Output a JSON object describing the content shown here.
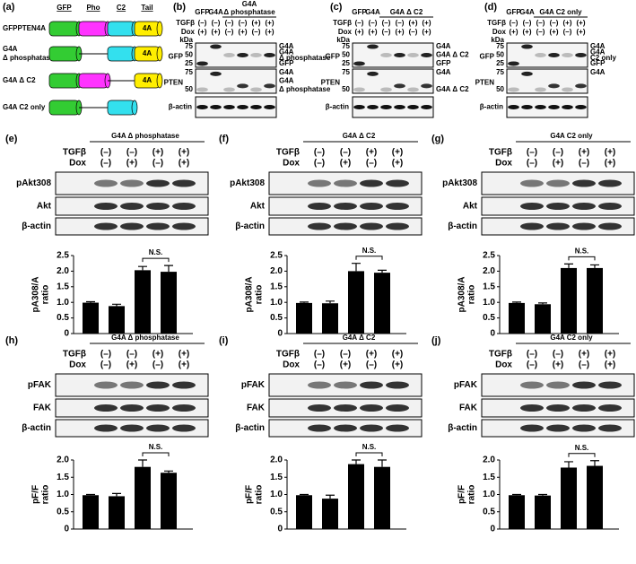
{
  "panel_a": {
    "label": "(a)",
    "domains": [
      "GFP",
      "Pho",
      "C2",
      "Tail"
    ],
    "tail": "4A",
    "constructs": [
      [
        "GFPPTEN4A"
      ],
      [
        "G4A",
        "Δ phosphatase"
      ],
      [
        "G4A Δ C2"
      ],
      [
        "G4A C2 only"
      ]
    ]
  },
  "blot_panels": [
    {
      "label": "(b)",
      "header": [
        "GFP",
        "G4A",
        "G4A",
        "Δ phosphatase"
      ],
      "rows": [
        {
          "name": "TGFβ",
          "values": [
            "(–)",
            "(–)",
            "(–)",
            "(–)",
            "(+)",
            "(+)"
          ]
        },
        {
          "name": "Dox",
          "values": [
            "(+)",
            "(+)",
            "(–)",
            "(+)",
            "(–)",
            "(+)"
          ]
        }
      ],
      "kda": "kDa",
      "blots": [
        {
          "name": "GFP",
          "markers": [
            75,
            50,
            25
          ],
          "right": [
            "G4A",
            "G4A",
            "Δ phosphatase",
            "GFP"
          ]
        },
        {
          "name": "PTEN",
          "markers": [
            75,
            50
          ],
          "right": [
            "G4A",
            "G4A",
            "Δ phosphatase"
          ]
        },
        {
          "name": "β-actin"
        }
      ]
    },
    {
      "label": "(c)",
      "header": [
        "GFP",
        "G4A",
        "G4A Δ C2"
      ],
      "rows": [
        {
          "name": "TGFβ",
          "values": [
            "(–)",
            "(–)",
            "(–)",
            "(–)",
            "(+)",
            "(+)"
          ]
        },
        {
          "name": "Dox",
          "values": [
            "(+)",
            "(+)",
            "(–)",
            "(+)",
            "(–)",
            "(+)"
          ]
        }
      ],
      "kda": "kDa",
      "blots": [
        {
          "name": "GFP",
          "markers": [
            75,
            50,
            25
          ],
          "right": [
            "G4A",
            "G4A Δ C2",
            "GFP"
          ]
        },
        {
          "name": "PTEN",
          "markers": [
            75,
            50
          ],
          "right": [
            "G4A",
            "G4A Δ C2"
          ]
        },
        {
          "name": "β-actin"
        }
      ]
    },
    {
      "label": "(d)",
      "header": [
        "GFP",
        "G4A",
        "G4A C2 only"
      ],
      "rows": [
        {
          "name": "TGFβ",
          "values": [
            "(–)",
            "(–)",
            "(–)",
            "(–)",
            "(+)",
            "(+)"
          ]
        },
        {
          "name": "Dox",
          "values": [
            "(+)",
            "(+)",
            "(–)",
            "(+)",
            "(–)",
            "(+)"
          ]
        }
      ],
      "kda": "kDa",
      "blots": [
        {
          "name": "GFP",
          "markers": [
            75,
            50,
            25
          ],
          "right": [
            "G4A",
            "G4A",
            "C2 only",
            "GFP"
          ]
        },
        {
          "name": "PTEN",
          "markers": [
            75,
            50
          ],
          "right": [
            "G4A"
          ]
        },
        {
          "name": "β-actin"
        }
      ]
    }
  ],
  "chart_data": [
    {
      "type": "bar",
      "label": "(e)",
      "title": "G4A Δ phosphatase",
      "rows": [
        {
          "name": "TGFβ",
          "values": [
            "(–)",
            "(–)",
            "(+)",
            "(+)"
          ]
        },
        {
          "name": "Dox",
          "values": [
            "(–)",
            "(+)",
            "(–)",
            "(+)"
          ]
        }
      ],
      "blots": [
        "pAkt308",
        "Akt",
        "β-actin"
      ],
      "ylabel": [
        "pA308/A",
        "ratio"
      ],
      "values": [
        0.99,
        0.88,
        2.03,
        1.98
      ],
      "errors": [
        0.03,
        0.06,
        0.12,
        0.2
      ],
      "color": "#000000",
      "ylim": [
        0,
        2.5
      ],
      "yticks": [
        0,
        0.5,
        {
          "value": 1,
          "label": "1.0"
        },
        1.5,
        {
          "value": 2,
          "label": "2.0"
        },
        2.5
      ],
      "annotation": "N.S."
    },
    {
      "type": "bar",
      "label": "(f)",
      "title": "G4A Δ C2",
      "rows": [
        {
          "name": "TGFβ",
          "values": [
            "(–)",
            "(–)",
            "(+)",
            "(+)"
          ]
        },
        {
          "name": "Dox",
          "values": [
            "(–)",
            "(+)",
            "(–)",
            "(+)"
          ]
        }
      ],
      "blots": [
        "pAkt308",
        "Akt",
        "β-actin"
      ],
      "ylabel": [
        "pA308/A",
        "ratio"
      ],
      "values": [
        0.98,
        0.97,
        2.0,
        1.95
      ],
      "errors": [
        0.03,
        0.07,
        0.25,
        0.08
      ],
      "color": "#000000",
      "ylim": [
        0,
        2.5
      ],
      "yticks": [
        0,
        0.5,
        {
          "value": 1,
          "label": "1.0"
        },
        1.5,
        {
          "value": 2,
          "label": "2.0"
        },
        2.5
      ],
      "annotation": "N.S."
    },
    {
      "type": "bar",
      "label": "(g)",
      "title": "G4A C2 only",
      "rows": [
        {
          "name": "TGFβ",
          "values": [
            "(–)",
            "(–)",
            "(+)",
            "(+)"
          ]
        },
        {
          "name": "Dox",
          "values": [
            "(–)",
            "(+)",
            "(–)",
            "(+)"
          ]
        }
      ],
      "blots": [
        "pAkt308",
        "Akt",
        "β-actin"
      ],
      "ylabel": [
        "pA308/A",
        "ratio"
      ],
      "values": [
        0.98,
        0.94,
        2.1,
        2.1
      ],
      "errors": [
        0.03,
        0.04,
        0.13,
        0.1
      ],
      "color": "#000000",
      "ylim": [
        0,
        2.5
      ],
      "yticks": [
        0,
        0.5,
        {
          "value": 1,
          "label": "1.0"
        },
        1.5,
        {
          "value": 2,
          "label": "2.0"
        },
        2.5
      ],
      "annotation": "N.S."
    },
    {
      "type": "bar",
      "label": "(h)",
      "title": "G4A Δ phosphatase",
      "rows": [
        {
          "name": "TGFβ",
          "values": [
            "(–)",
            "(–)",
            "(+)",
            "(+)"
          ]
        },
        {
          "name": "Dox",
          "values": [
            "(–)",
            "(+)",
            "(–)",
            "(+)"
          ]
        }
      ],
      "blots": [
        "pFAK",
        "FAK",
        "β-actin"
      ],
      "ylabel": [
        "pF/F",
        "ratio"
      ],
      "values": [
        0.98,
        0.95,
        1.8,
        1.63
      ],
      "errors": [
        0.02,
        0.08,
        0.2,
        0.05
      ],
      "color": "#000000",
      "ylim": [
        0,
        2
      ],
      "yticks": [
        0,
        0.5,
        {
          "value": 1,
          "label": "1.0"
        },
        1.5,
        {
          "value": 2,
          "label": "2.0"
        }
      ],
      "annotation": "N.S."
    },
    {
      "type": "bar",
      "label": "(i)",
      "title": "G4A Δ C2",
      "rows": [
        {
          "name": "TGFβ",
          "values": [
            "(–)",
            "(–)",
            "(+)",
            "(+)"
          ]
        },
        {
          "name": "Dox",
          "values": [
            "(–)",
            "(+)",
            "(–)",
            "(+)"
          ]
        }
      ],
      "blots": [
        "pFAK",
        "FAK",
        "β-actin"
      ],
      "ylabel": [
        "pF/F",
        "ratio"
      ],
      "values": [
        0.98,
        0.88,
        1.88,
        1.8
      ],
      "errors": [
        0.02,
        0.1,
        0.12,
        0.2
      ],
      "color": "#000000",
      "ylim": [
        0,
        2
      ],
      "yticks": [
        0,
        0.5,
        {
          "value": 1,
          "label": "1.0"
        },
        1.5,
        {
          "value": 2,
          "label": "2.0"
        }
      ],
      "annotation": "N.S."
    },
    {
      "type": "bar",
      "label": "(j)",
      "title": "G4A C2 only",
      "rows": [
        {
          "name": "TGFβ",
          "values": [
            "(–)",
            "(–)",
            "(+)",
            "(+)"
          ]
        },
        {
          "name": "Dox",
          "values": [
            "(–)",
            "(+)",
            "(–)",
            "(+)"
          ]
        }
      ],
      "blots": [
        "pFAK",
        "FAK",
        "β-actin"
      ],
      "ylabel": [
        "pF/F",
        "ratio"
      ],
      "values": [
        0.98,
        0.97,
        1.78,
        1.83
      ],
      "errors": [
        0.02,
        0.03,
        0.17,
        0.15
      ],
      "color": "#000000",
      "ylim": [
        0,
        2
      ],
      "yticks": [
        0,
        0.5,
        {
          "value": 1,
          "label": "1.0"
        },
        1.5,
        {
          "value": 2,
          "label": "2.0"
        }
      ],
      "annotation": "N.S."
    }
  ]
}
